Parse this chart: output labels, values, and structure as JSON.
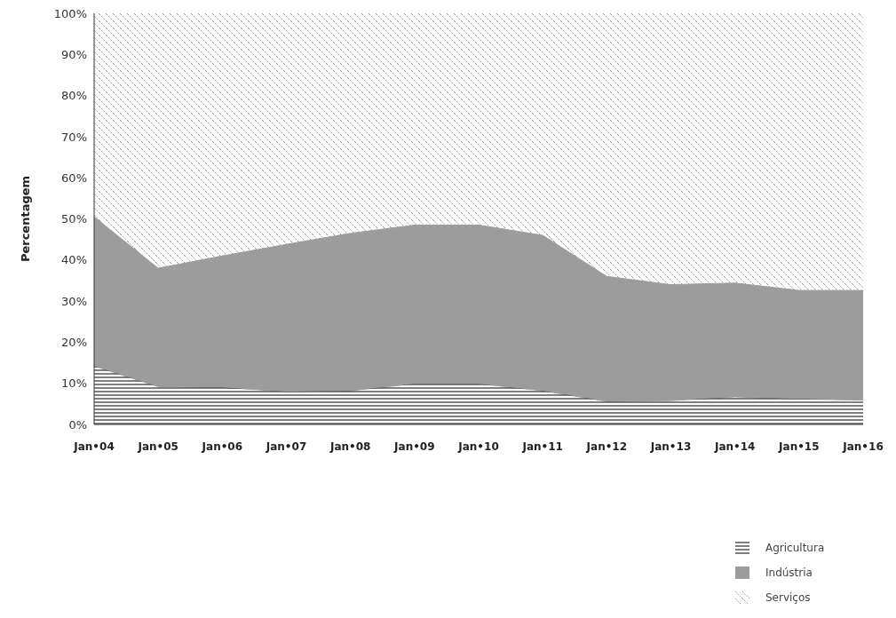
{
  "chart_data": {
    "type": "area",
    "stacked": true,
    "ylabel": "Percentagem",
    "categories": [
      "Jan•04",
      "Jan•05",
      "Jan•06",
      "Jan•07",
      "Jan•08",
      "Jan•09",
      "Jan•10",
      "Jan•11",
      "Jan•12",
      "Jan•13",
      "Jan•14",
      "Jan•15",
      "Jan•16"
    ],
    "series": [
      {
        "name": "Agricultura",
        "color": "#000000",
        "values": [
          14.2,
          9.2,
          9,
          8,
          8.2,
          9.9,
          9.9,
          8.2,
          5.6,
          5.8,
          6.7,
          6.2,
          5.9
        ]
      },
      {
        "name": "Indústria",
        "color": "#9c9c9c",
        "values": [
          36.3,
          28.8,
          32,
          35.8,
          38.3,
          38.6,
          38.6,
          37.8,
          30.4,
          28.2,
          27.7,
          26.4,
          26.7
        ]
      },
      {
        "name": "Serviços",
        "color": "#444444",
        "values": [
          49.5,
          62,
          59,
          56.2,
          53.5,
          51.5,
          51.5,
          54,
          64,
          66,
          65.6,
          67.4,
          67.4
        ]
      }
    ],
    "ylim": [
      0,
      100
    ],
    "yticks": [
      {
        "value": 0,
        "label": "0%"
      },
      {
        "value": 10,
        "label": "10%"
      },
      {
        "value": 20,
        "label": "20%"
      },
      {
        "value": 30,
        "label": "30%"
      },
      {
        "value": 40,
        "label": "40%"
      },
      {
        "value": 50,
        "label": "50%"
      },
      {
        "value": 60,
        "label": "60%"
      },
      {
        "value": 70,
        "label": "70%"
      },
      {
        "value": 80,
        "label": "80%"
      },
      {
        "value": 90,
        "label": "90%"
      },
      {
        "value": 100,
        "label": "100%"
      }
    ],
    "legend": "bottom right"
  }
}
